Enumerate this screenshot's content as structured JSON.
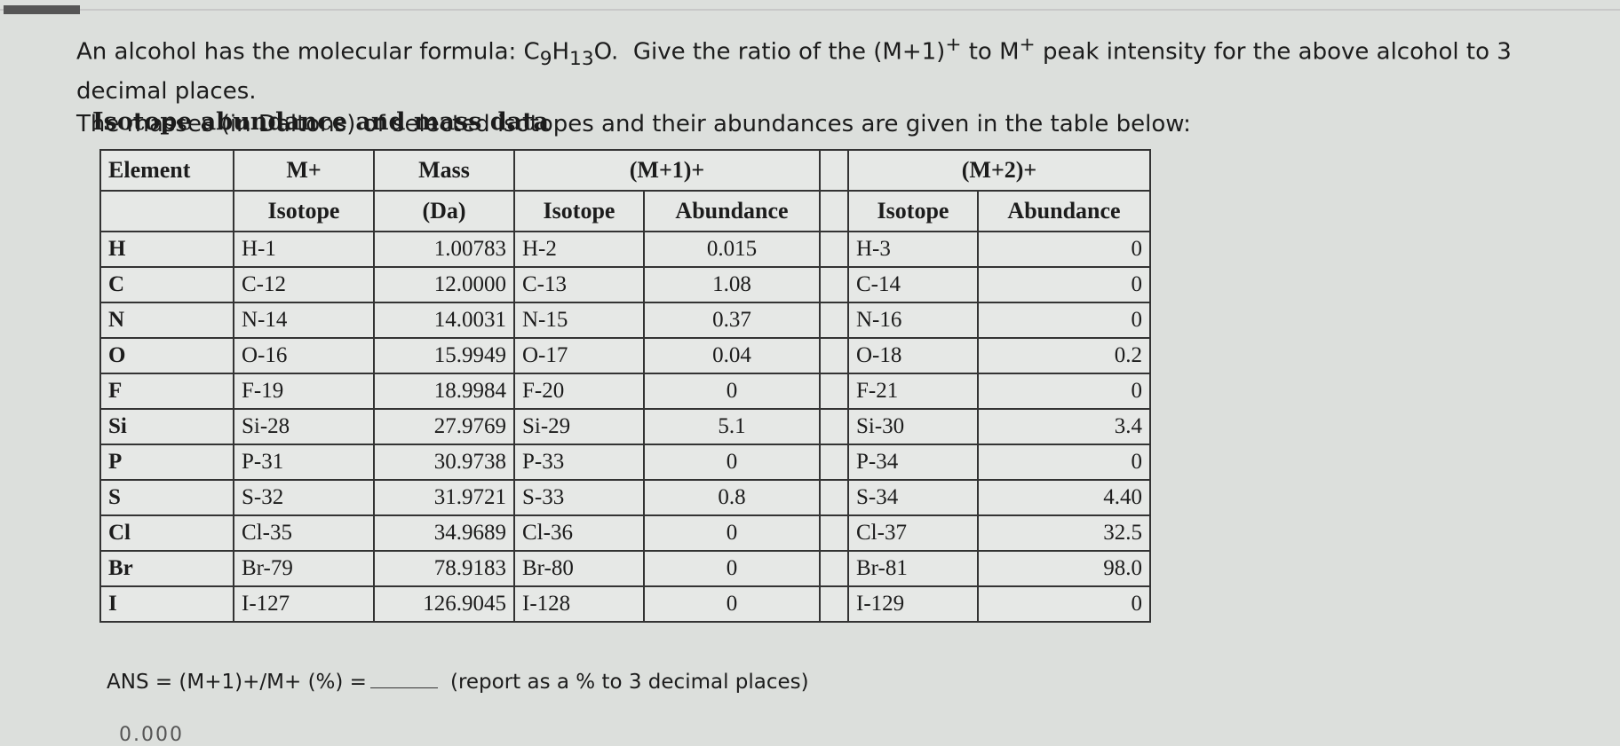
{
  "question": {
    "line1_a": "An alcohol has the molecular formula: C",
    "f_c": "9",
    "f_h": "H",
    "f_hsub": "13",
    "f_o": "O.",
    "line1_b": "Give the ratio of the (M+1)",
    "sup_plus": "+",
    "line1_c": "to M",
    "line1_d": "peak intensity for the above alcohol to 3 decimal places.",
    "line2": "The masses (in Daltons) of selected isotopes and their abundances are given in the table below:"
  },
  "table_title": "Isotope abundance and mass data",
  "headers": {
    "element": "Element",
    "m_plus": "M+",
    "m_isotope": "Isotope",
    "mass": "Mass",
    "mass_unit": "(Da)",
    "m1": "(M+1)+",
    "m1_isotope": "Isotope",
    "m1_abundance": "Abundance",
    "m2": "(M+2)+",
    "m2_isotope": "Isotope",
    "m2_abundance": "Abundance"
  },
  "rows": [
    {
      "el": "H",
      "iso": "H-1",
      "mass": "1.00783",
      "iso1": "H-2",
      "ab1": "0.015",
      "iso2": "H-3",
      "ab2": "0"
    },
    {
      "el": "C",
      "iso": "C-12",
      "mass": "12.0000",
      "iso1": "C-13",
      "ab1": "1.08",
      "iso2": "C-14",
      "ab2": "0"
    },
    {
      "el": "N",
      "iso": "N-14",
      "mass": "14.0031",
      "iso1": "N-15",
      "ab1": "0.37",
      "iso2": "N-16",
      "ab2": "0"
    },
    {
      "el": "O",
      "iso": "O-16",
      "mass": "15.9949",
      "iso1": "O-17",
      "ab1": "0.04",
      "iso2": "O-18",
      "ab2": "0.2"
    },
    {
      "el": "F",
      "iso": "F-19",
      "mass": "18.9984",
      "iso1": "F-20",
      "ab1": "0",
      "iso2": "F-21",
      "ab2": "0"
    },
    {
      "el": "Si",
      "iso": "Si-28",
      "mass": "27.9769",
      "iso1": "Si-29",
      "ab1": "5.1",
      "iso2": "Si-30",
      "ab2": "3.4"
    },
    {
      "el": "P",
      "iso": "P-31",
      "mass": "30.9738",
      "iso1": "P-33",
      "ab1": "0",
      "iso2": "P-34",
      "ab2": "0"
    },
    {
      "el": "S",
      "iso": "S-32",
      "mass": "31.9721",
      "iso1": "S-33",
      "ab1": "0.8",
      "iso2": "S-34",
      "ab2": "4.40"
    },
    {
      "el": "Cl",
      "iso": "Cl-35",
      "mass": "34.9689",
      "iso1": "Cl-36",
      "ab1": "0",
      "iso2": "Cl-37",
      "ab2": "32.5"
    },
    {
      "el": "Br",
      "iso": "Br-79",
      "mass": "78.9183",
      "iso1": "Br-80",
      "ab1": "0",
      "iso2": "Br-81",
      "ab2": "98.0"
    },
    {
      "el": "I",
      "iso": "I-127",
      "mass": "126.9045",
      "iso1": "I-128",
      "ab1": "0",
      "iso2": "I-129",
      "ab2": "0"
    }
  ],
  "answer": {
    "label": "ANS = (M+1)+/M+ (%) =",
    "note": "(report as a % to 3 decimal places)"
  },
  "cut_text": "0.000"
}
